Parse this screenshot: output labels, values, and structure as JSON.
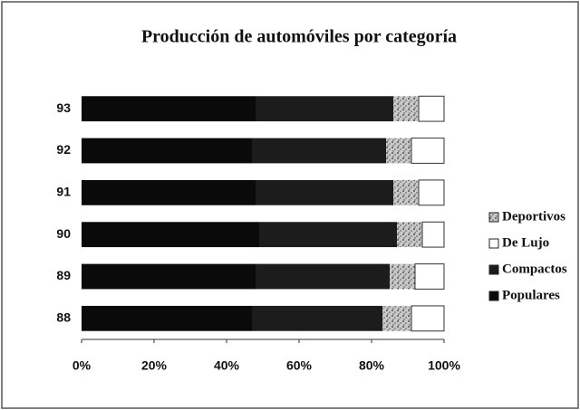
{
  "chart_data": {
    "type": "stacked-bar-horizontal",
    "title": "Producción de automóviles por categoría",
    "categories": [
      "88",
      "89",
      "90",
      "91",
      "92",
      "93"
    ],
    "series": [
      {
        "name": "Populares",
        "color": "#0a0a0a",
        "values": [
          47,
          48,
          49,
          48,
          47,
          48
        ]
      },
      {
        "name": "Compactos",
        "color": "#1c1c1c",
        "values": [
          36,
          37,
          38,
          38,
          37,
          38
        ]
      },
      {
        "name": "Deportivos",
        "color": "#b5b5b5",
        "values": [
          8,
          7,
          7,
          7,
          7,
          7
        ]
      },
      {
        "name": "De Lujo",
        "color": "#ffffff",
        "values": [
          9,
          8,
          6,
          7,
          9,
          7
        ]
      }
    ],
    "legend_order": [
      "Deportivos",
      "De Lujo",
      "Compactos",
      "Populares"
    ],
    "xlim": [
      0,
      100
    ],
    "xticks": [
      {
        "value": 0,
        "label": "0%"
      },
      {
        "value": 20,
        "label": "20%"
      },
      {
        "value": 40,
        "label": "40%"
      },
      {
        "value": 60,
        "label": "60%"
      },
      {
        "value": 80,
        "label": "80%"
      },
      {
        "value": 100,
        "label": "100%"
      }
    ],
    "legend": "right"
  }
}
